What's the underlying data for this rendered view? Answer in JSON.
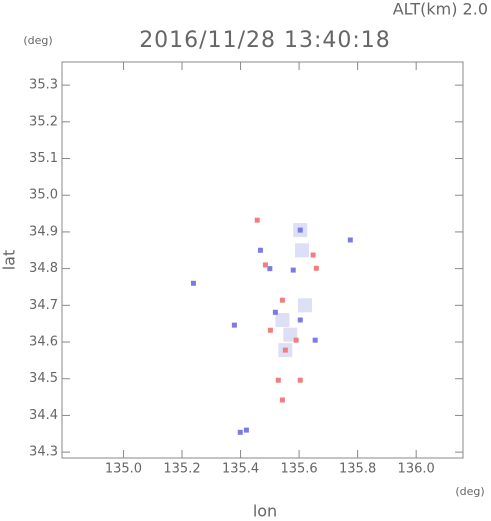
{
  "chart_data": {
    "type": "scatter",
    "title": "2016/11/28 13:40:18",
    "subtitle": "ALT(km) 2.0",
    "y_unit": "(deg)",
    "x_unit": "(deg)",
    "xlabel": "lon",
    "ylabel": "lat",
    "xlim": [
      134.79,
      136.16
    ],
    "ylim": [
      34.284,
      35.363
    ],
    "xticks": [
      {
        "value": 135.0,
        "label": "135.0"
      },
      {
        "value": 135.2,
        "label": "135.2"
      },
      {
        "value": 135.4,
        "label": "135.4"
      },
      {
        "value": 135.6,
        "label": "135.6"
      },
      {
        "value": 135.8,
        "label": "135.8"
      },
      {
        "value": 136.0,
        "label": "136.0"
      }
    ],
    "yticks": [
      {
        "value": 34.3,
        "label": "34.3"
      },
      {
        "value": 34.4,
        "label": "34.4"
      },
      {
        "value": 34.5,
        "label": "34.5"
      },
      {
        "value": 34.6,
        "label": "34.6"
      },
      {
        "value": 34.7,
        "label": "34.7"
      },
      {
        "value": 34.8,
        "label": "34.8"
      },
      {
        "value": 34.9,
        "label": "34.9"
      },
      {
        "value": 35.0,
        "label": "35.0"
      },
      {
        "value": 35.1,
        "label": "35.1"
      },
      {
        "value": 35.2,
        "label": "35.2"
      },
      {
        "value": 35.3,
        "label": "35.3"
      }
    ],
    "series": [
      {
        "color": "#dcdff6",
        "x": [
          135.604,
          135.553,
          135.543,
          135.61,
          135.62,
          135.57
        ],
        "y": [
          34.905,
          34.578,
          34.66,
          34.85,
          34.7,
          34.62
        ]
      },
      {
        "color": "#7b7be8",
        "x": [
          135.604,
          135.775,
          135.58,
          135.604,
          135.468,
          135.239,
          135.399,
          135.519,
          135.655,
          135.379,
          135.42,
          135.5
        ],
        "y": [
          34.905,
          34.878,
          34.796,
          34.66,
          34.85,
          34.76,
          34.354,
          34.681,
          34.605,
          34.646,
          34.36,
          34.8
        ]
      },
      {
        "color": "#ef7f7f",
        "x": [
          135.457,
          135.648,
          135.59,
          135.553,
          135.502,
          135.529,
          135.604,
          135.543,
          135.543,
          135.659,
          135.485
        ],
        "y": [
          34.932,
          34.837,
          34.605,
          34.578,
          34.632,
          34.496,
          34.496,
          34.442,
          34.714,
          34.801,
          34.81
        ]
      }
    ]
  }
}
